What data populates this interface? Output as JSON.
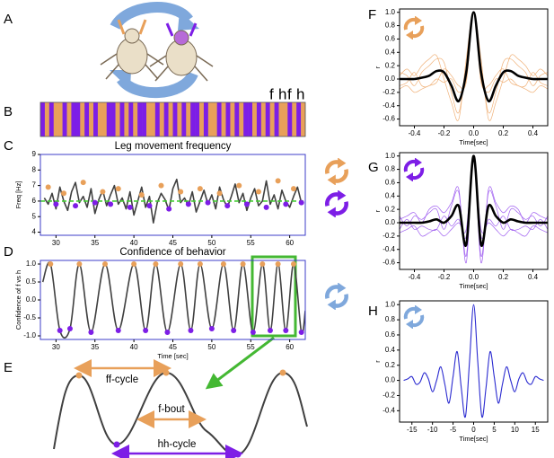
{
  "panel_labels": [
    "A",
    "B",
    "C",
    "D",
    "E",
    "F",
    "G",
    "H"
  ],
  "barcode": {
    "colors": {
      "f": "#e8a05a",
      "h": "#7d1ee6"
    },
    "letters": [
      "f",
      "h",
      "f",
      "h"
    ],
    "states": [
      "h",
      "f",
      "h",
      "f",
      "f",
      "h",
      "f",
      "h",
      "h",
      "f",
      "h",
      "f",
      "h",
      "f",
      "f",
      "h",
      "h",
      "f",
      "h",
      "f",
      "h",
      "f",
      "h",
      "h",
      "f",
      "f",
      "h",
      "f",
      "h",
      "f",
      "h",
      "f",
      "h",
      "f",
      "h",
      "h",
      "f",
      "h",
      "f",
      "f",
      "h",
      "f",
      "h",
      "f",
      "h",
      "f",
      "h",
      "h",
      "f",
      "h",
      "f",
      "h",
      "f",
      "h",
      "f",
      "f",
      "h",
      "f",
      "h",
      "f"
    ]
  },
  "diagram_e": {
    "labels": [
      "ff-cycle",
      "f-bout",
      "hh-cycle"
    ]
  },
  "chart_data": [
    {
      "type": "line",
      "title": "Leg movement frequency",
      "ylabel": "Freq [Hz]",
      "frame_color": "#3c3cc8",
      "xlim": [
        28,
        62
      ],
      "ylim": [
        3.8,
        9
      ],
      "xticks": [
        30,
        35,
        40,
        45,
        50,
        55,
        60
      ],
      "yticks": [
        4,
        5,
        6,
        7,
        8,
        9
      ],
      "series": [
        {
          "style": "line",
          "color": "#404040",
          "width": 1.6,
          "x": [
            28.5,
            29,
            29.5,
            30,
            30.5,
            31,
            31.5,
            32,
            32.5,
            33,
            33.5,
            34,
            34.5,
            35,
            35.5,
            36,
            36.5,
            37,
            37.5,
            38,
            38.5,
            39,
            39.5,
            40,
            40.5,
            41,
            41.5,
            42,
            42.5,
            43,
            43.5,
            44,
            44.5,
            45,
            45.5,
            46,
            46.5,
            47,
            47.5,
            48,
            48.5,
            49,
            49.5,
            50,
            50.5,
            51,
            51.5,
            52,
            52.5,
            53,
            53.5,
            54,
            54.5,
            55,
            55.5,
            56,
            56.5,
            57,
            57.5,
            58,
            58.5,
            59,
            59.5,
            60,
            60.5,
            61,
            61.5
          ],
          "values": [
            6.2,
            5.8,
            6.5,
            5.5,
            6.9,
            6.0,
            5.4,
            6.6,
            7.2,
            5.9,
            6.3,
            5.6,
            6.8,
            5.2,
            6.1,
            6.7,
            5.7,
            6.4,
            7.0,
            5.8,
            6.2,
            5.5,
            6.6,
            5.1,
            6.0,
            6.9,
            5.6,
            6.3,
            4.6,
            5.9,
            6.5,
            6.1,
            5.4,
            6.8,
            7.4,
            5.9,
            6.2,
            5.7,
            6.6,
            5.3,
            6.0,
            6.7,
            5.8,
            6.4,
            5.5,
            6.9,
            6.1,
            5.6,
            6.3,
            7.1,
            5.9,
            6.5,
            5.4,
            6.2,
            6.8,
            5.7,
            6.0,
            7.3,
            5.8,
            6.4,
            5.5,
            6.7,
            6.0,
            5.6,
            6.3,
            6.9,
            5.9
          ]
        },
        {
          "style": "line",
          "color": "#44cc33",
          "width": 1.6,
          "dash": true,
          "x": [
            28,
            62
          ],
          "values": [
            6.0,
            6.0
          ]
        },
        {
          "style": "dots",
          "color": "#e8a05a",
          "x": [
            29,
            31,
            33.5,
            36,
            38,
            41,
            43.5,
            46,
            48.5,
            51,
            53.5,
            56,
            58.5,
            60.5
          ],
          "values": [
            6.9,
            6.5,
            7.2,
            6.6,
            6.8,
            6.4,
            7.0,
            6.6,
            6.8,
            6.5,
            7.0,
            6.6,
            7.3,
            6.8
          ]
        },
        {
          "style": "dots",
          "color": "#7d1ee6",
          "x": [
            30,
            32.5,
            35,
            37,
            39.5,
            42,
            44.5,
            47,
            49.5,
            52,
            54.5,
            57,
            59.5,
            61.5
          ],
          "values": [
            5.8,
            5.7,
            5.9,
            5.8,
            5.6,
            5.7,
            5.5,
            5.8,
            5.9,
            5.7,
            5.8,
            5.6,
            5.8,
            5.9
          ]
        }
      ]
    },
    {
      "type": "line",
      "title": "Confidence of behavior",
      "ylabel": "Confidence of f vs h",
      "xlabel": "Time [sec]",
      "frame_color": "#3c3cc8",
      "smooth": true,
      "xlim": [
        28,
        62
      ],
      "ylim": [
        -1.1,
        1.1
      ],
      "xticks": [
        30,
        35,
        40,
        45,
        50,
        55,
        60
      ],
      "yticks": [
        {
          "value": -1.0,
          "label": "-1.0"
        },
        -0.5,
        {
          "value": 0.0,
          "label": "0.0"
        },
        0.5,
        {
          "value": 1.0,
          "label": "1.0"
        }
      ],
      "series": [
        {
          "style": "line",
          "color": "#404040",
          "width": 1.6,
          "x": [
            28.3,
            29.3,
            30.5,
            31.8,
            33,
            34.5,
            36.3,
            38,
            40,
            41.5,
            42.8,
            44.3,
            46,
            47.3,
            48.5,
            50,
            51.5,
            52.8,
            54,
            55.3,
            56.5,
            57.5,
            58.5,
            59.5,
            60.5,
            61.5,
            62
          ],
          "values": [
            0.5,
            1.0,
            -0.85,
            -0.8,
            1.0,
            -0.9,
            1.0,
            -0.85,
            1.0,
            -0.85,
            1.0,
            -0.9,
            1.0,
            -0.85,
            1.0,
            -0.8,
            1.0,
            -0.85,
            1.0,
            -0.9,
            1.0,
            -0.85,
            1.0,
            -0.85,
            1.0,
            -0.9,
            -0.3
          ]
        },
        {
          "style": "dots",
          "color": "#e8a05a",
          "x": [
            29.3,
            33,
            36.3,
            40,
            42.8,
            46,
            48.5,
            51.5,
            54,
            56.5,
            58.5,
            60.5
          ],
          "values": [
            1.0,
            1.0,
            1.0,
            1.0,
            1.0,
            1.0,
            1.0,
            1.0,
            1.0,
            1.0,
            1.0,
            1.0
          ]
        },
        {
          "style": "dots",
          "color": "#7d1ee6",
          "x": [
            30.5,
            31.8,
            34.5,
            38,
            41.5,
            44.3,
            47.3,
            50,
            52.8,
            55.3,
            57.5,
            59.5,
            61.5
          ],
          "values": [
            -0.85,
            -0.8,
            -0.9,
            -0.85,
            -0.85,
            -0.9,
            -0.85,
            -0.8,
            -0.85,
            -0.9,
            -0.85,
            -0.85,
            -0.9
          ]
        }
      ]
    },
    {
      "type": "line",
      "xlabel": "Time[sec]",
      "ylabel": "r",
      "frame_color": "#000000",
      "smooth": true,
      "xlim": [
        -0.5,
        0.5
      ],
      "ylim": [
        -0.7,
        1.05
      ],
      "xticks": [
        -0.4,
        -0.2,
        {
          "value": 0.0,
          "label": "0.0"
        },
        0.2,
        0.4
      ],
      "yticks": [
        -0.6,
        -0.4,
        -0.2,
        {
          "value": 0.0,
          "label": "0.0"
        },
        0.2,
        0.4,
        0.6,
        0.8,
        {
          "value": 1.0,
          "label": "1.0"
        }
      ],
      "x": [
        -0.5,
        -0.45,
        -0.4,
        -0.35,
        -0.3,
        -0.25,
        -0.2,
        -0.15,
        -0.1,
        -0.05,
        0,
        0.05,
        0.1,
        0.15,
        0.2,
        0.25,
        0.3,
        0.35,
        0.4,
        0.45,
        0.5
      ],
      "series": [
        {
          "style": "line",
          "color": "#f0b27a",
          "width": 0.7,
          "values": [
            0.1,
            0.05,
            -0.1,
            0.1,
            0.2,
            0.3,
            0.25,
            -0.2,
            -0.5,
            0.2,
            1.0,
            0.2,
            -0.5,
            -0.2,
            0.25,
            0.3,
            0.2,
            0.1,
            -0.1,
            0.05,
            0.1
          ]
        },
        {
          "style": "line",
          "color": "#f0b27a",
          "width": 0.7,
          "values": [
            -0.1,
            -0.05,
            0.1,
            -0.1,
            -0.1,
            0.0,
            -0.05,
            0.0,
            -0.2,
            0.0,
            1.0,
            0.0,
            -0.2,
            0.0,
            -0.05,
            0.0,
            -0.1,
            -0.1,
            0.1,
            -0.05,
            -0.1
          ]
        },
        {
          "style": "line",
          "color": "#f0b27a",
          "width": 0.7,
          "values": [
            0.05,
            0.15,
            0.05,
            0.2,
            0.3,
            0.35,
            0.0,
            -0.35,
            -0.6,
            0.3,
            1.0,
            0.3,
            -0.6,
            -0.35,
            0.0,
            0.35,
            0.3,
            0.2,
            0.05,
            0.15,
            0.05
          ]
        },
        {
          "style": "line",
          "color": "#f0b27a",
          "width": 0.7,
          "values": [
            -0.15,
            -0.1,
            -0.2,
            -0.15,
            -0.1,
            -0.05,
            0.15,
            0.05,
            -0.1,
            -0.05,
            1.0,
            -0.05,
            -0.1,
            0.05,
            0.15,
            -0.05,
            -0.1,
            -0.15,
            -0.2,
            -0.1,
            -0.15
          ]
        },
        {
          "style": "line",
          "color": "#000000",
          "width": 2.6,
          "values": [
            0,
            0,
            0,
            0.02,
            0.05,
            0.12,
            0.1,
            -0.1,
            -0.33,
            0.1,
            1.0,
            0.1,
            -0.33,
            -0.1,
            0.1,
            0.12,
            0.05,
            0.02,
            0,
            0,
            0
          ]
        }
      ]
    },
    {
      "type": "line",
      "xlabel": "Time[sec]",
      "ylabel": "r",
      "frame_color": "#000000",
      "smooth": true,
      "xlim": [
        -0.5,
        0.5
      ],
      "ylim": [
        -0.7,
        1.05
      ],
      "xticks": [
        -0.4,
        -0.2,
        {
          "value": 0.0,
          "label": "0.0"
        },
        0.2,
        0.4
      ],
      "yticks": [
        -0.6,
        -0.4,
        -0.2,
        {
          "value": 0.0,
          "label": "0.0"
        },
        0.2,
        0.4,
        0.6,
        0.8,
        {
          "value": 1.0,
          "label": "1.0"
        }
      ],
      "x": [
        -0.5,
        -0.45,
        -0.4,
        -0.35,
        -0.3,
        -0.25,
        -0.2,
        -0.15,
        -0.1,
        -0.05,
        0,
        0.05,
        0.1,
        0.15,
        0.2,
        0.25,
        0.3,
        0.35,
        0.4,
        0.45,
        0.5
      ],
      "series": [
        {
          "style": "line",
          "color": "#a060f0",
          "width": 0.7,
          "values": [
            0.1,
            -0.05,
            0.1,
            0.05,
            0.15,
            0.2,
            -0.1,
            0.25,
            0.45,
            -0.5,
            1.0,
            -0.5,
            0.45,
            0.25,
            -0.1,
            0.2,
            0.15,
            0.05,
            0.1,
            -0.05,
            0.1
          ]
        },
        {
          "style": "line",
          "color": "#a060f0",
          "width": 0.7,
          "values": [
            -0.1,
            0.05,
            -0.1,
            -0.05,
            -0.1,
            -0.1,
            0.1,
            -0.05,
            0.05,
            -0.2,
            1.0,
            -0.2,
            0.05,
            -0.05,
            0.1,
            -0.1,
            -0.1,
            -0.05,
            -0.1,
            0.05,
            -0.1
          ]
        },
        {
          "style": "line",
          "color": "#a060f0",
          "width": 0.7,
          "values": [
            0.05,
            0.1,
            0.15,
            0.0,
            0.2,
            0.25,
            0.15,
            0.3,
            0.5,
            -0.6,
            1.0,
            -0.6,
            0.5,
            0.3,
            0.15,
            0.25,
            0.2,
            0.0,
            0.15,
            0.1,
            0.05
          ]
        },
        {
          "style": "line",
          "color": "#a060f0",
          "width": 0.7,
          "values": [
            -0.15,
            -0.1,
            -0.05,
            -0.2,
            -0.15,
            -0.1,
            -0.2,
            -0.1,
            0.0,
            -0.1,
            1.0,
            -0.1,
            0.0,
            -0.1,
            -0.2,
            -0.1,
            -0.15,
            -0.2,
            -0.05,
            -0.1,
            -0.15
          ]
        },
        {
          "style": "line",
          "color": "#000000",
          "width": 2.6,
          "values": [
            0,
            0,
            0,
            0,
            0.02,
            0.05,
            0,
            0.1,
            0.25,
            -0.33,
            1.0,
            -0.33,
            0.25,
            0.1,
            0,
            0.05,
            0.02,
            0,
            0,
            0,
            0
          ]
        }
      ]
    },
    {
      "type": "line",
      "xlabel": "Time[sec]",
      "ylabel": "r",
      "frame_color": "#000000",
      "smooth": true,
      "xlim": [
        -18,
        18
      ],
      "ylim": [
        -0.55,
        1.05
      ],
      "xticks": [
        -15,
        -10,
        -5,
        0,
        5,
        10,
        15
      ],
      "yticks": [
        -0.4,
        -0.2,
        {
          "value": 0.0,
          "label": "0.0"
        },
        0.2,
        0.4,
        0.6,
        0.8,
        {
          "value": 1.0,
          "label": "1.0"
        }
      ],
      "x": [
        -17,
        -16,
        -15,
        -14,
        -13,
        -12,
        -11,
        -10,
        -9,
        -8,
        -7,
        -6,
        -5,
        -4,
        -3,
        -2,
        -1,
        0,
        1,
        2,
        3,
        4,
        5,
        6,
        7,
        8,
        9,
        10,
        11,
        12,
        13,
        14,
        15,
        16,
        17
      ],
      "series": [
        {
          "style": "line",
          "color": "#2a2ad0",
          "width": 1.1,
          "values": [
            0.0,
            0.02,
            0.05,
            -0.05,
            -0.02,
            0.1,
            0.02,
            -0.15,
            0.0,
            0.18,
            -0.05,
            -0.3,
            0.05,
            0.38,
            -0.1,
            -0.48,
            0.25,
            1.0,
            0.25,
            -0.48,
            -0.1,
            0.38,
            0.05,
            -0.3,
            -0.05,
            0.18,
            0.0,
            -0.15,
            0.02,
            0.1,
            -0.02,
            -0.05,
            0.05,
            0.02,
            0.0
          ]
        }
      ]
    }
  ]
}
